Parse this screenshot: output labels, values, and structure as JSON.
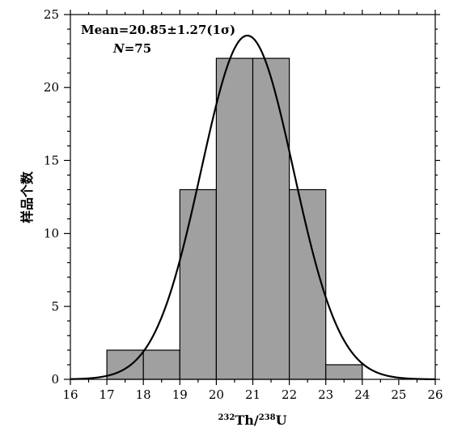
{
  "chart_data": {
    "type": "bar",
    "subtype": "histogram-with-normal-curve",
    "bins": [
      {
        "from": 17,
        "to": 18,
        "count": 2
      },
      {
        "from": 18,
        "to": 19,
        "count": 2
      },
      {
        "from": 19,
        "to": 20,
        "count": 13
      },
      {
        "from": 20,
        "to": 21,
        "count": 22
      },
      {
        "from": 21,
        "to": 22,
        "count": 22
      },
      {
        "from": 22,
        "to": 23,
        "count": 13
      },
      {
        "from": 23,
        "to": 24,
        "count": 1
      }
    ],
    "xlim": [
      16,
      26
    ],
    "ylim": [
      0,
      25
    ],
    "xticks": [
      "16",
      "17",
      "18",
      "19",
      "20",
      "21",
      "22",
      "23",
      "24",
      "25",
      "26"
    ],
    "yticks": [
      "0",
      "5",
      "10",
      "15",
      "20",
      "25"
    ],
    "xlabel": {
      "sup1": "232",
      "base1": "Th/",
      "sup2": "238",
      "base2": "U"
    },
    "ylabel": "样品个数",
    "annotation": {
      "line1": "Mean=20.85±1.27(1σ)",
      "line2_italic": "N",
      "line2_rest": "=75"
    },
    "normal_curve": {
      "mean": 20.85,
      "sigma": 1.27,
      "n": 75,
      "bin_width": 1
    },
    "colors": {
      "bar_fill": "#a0a0a0",
      "bar_edge": "#000000",
      "curve": "#000000"
    }
  }
}
